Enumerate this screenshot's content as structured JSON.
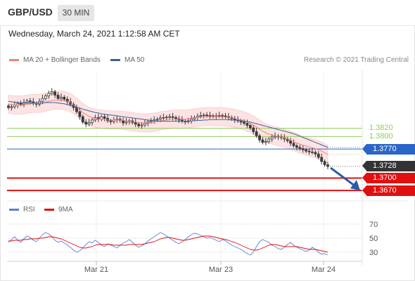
{
  "header": {
    "symbol": "GBP/USD",
    "period": "30 MIN"
  },
  "timestamp": "Wednesday, March 24, 2021 1:12:58 AM CET",
  "legend": {
    "ma20_bb": "MA 20 + Bollinger Bands",
    "ma50": "MA 50",
    "rsi": "RSI",
    "rsi_ma": "9MA"
  },
  "credit": "Research © 2021 Trading Central",
  "colors": {
    "ma20": "#f08080",
    "bands_fill": "#fde3e3",
    "ma50": "#3a5f9e",
    "resistance": "#8fcc5a",
    "pivot": "#2a66c8",
    "support": "#e01010",
    "last": "#333333",
    "rsi": "#5b7fd6",
    "rsi_ma": "#e01010",
    "candle": "#3a3a3a"
  },
  "chart_data": [
    {
      "type": "candlestick",
      "x_ticks": [
        "Mar 21",
        "Mar 23",
        "Mar 24"
      ],
      "ylim": [
        1.3655,
        1.396
      ],
      "price_levels": [
        {
          "label": "1.3820",
          "value": 1.382,
          "kind": "resistance"
        },
        {
          "label": "1.3800",
          "value": 1.38,
          "kind": "resistance"
        },
        {
          "label": "1.3770",
          "value": 1.377,
          "kind": "pivot"
        },
        {
          "label": "1.3728",
          "value": 1.3728,
          "kind": "last"
        },
        {
          "label": "1.3700",
          "value": 1.37,
          "kind": "support"
        },
        {
          "label": "1.3670",
          "value": 1.367,
          "kind": "support"
        }
      ],
      "close": [
        1.387,
        1.3872,
        1.3876,
        1.388,
        1.3878,
        1.3882,
        1.3886,
        1.3884,
        1.388,
        1.3878,
        1.3885,
        1.3892,
        1.3898,
        1.3904,
        1.3908,
        1.39,
        1.3892,
        1.3895,
        1.389,
        1.3884,
        1.3878,
        1.387,
        1.386,
        1.3848,
        1.3835,
        1.383,
        1.3834,
        1.384,
        1.3846,
        1.3842,
        1.3848,
        1.3844,
        1.3838,
        1.3836,
        1.384,
        1.3842,
        1.3839,
        1.3833,
        1.3836,
        1.3838,
        1.3834,
        1.383,
        1.3826,
        1.3828,
        1.3832,
        1.3836,
        1.3838,
        1.384,
        1.3842,
        1.3845,
        1.3846,
        1.3847,
        1.3848,
        1.3846,
        1.3843,
        1.384,
        1.3837,
        1.3836,
        1.3838,
        1.3842,
        1.3846,
        1.3849,
        1.3851,
        1.3852,
        1.3851,
        1.385,
        1.3849,
        1.385,
        1.3851,
        1.385,
        1.3848,
        1.3846,
        1.3843,
        1.384,
        1.3838,
        1.3835,
        1.3832,
        1.3827,
        1.3821,
        1.3812,
        1.3802,
        1.3792,
        1.3786,
        1.3788,
        1.3794,
        1.3799,
        1.3801,
        1.3799,
        1.3797,
        1.3794,
        1.379,
        1.3784,
        1.3778,
        1.3774,
        1.3771,
        1.3768,
        1.3765,
        1.3763,
        1.3762,
        1.3758,
        1.375,
        1.374,
        1.3732,
        1.3728
      ],
      "ma20": [
        1.3878,
        1.3877,
        1.3876,
        1.3876,
        1.3876,
        1.3877,
        1.3878,
        1.3879,
        1.388,
        1.388,
        1.388,
        1.3881,
        1.3883,
        1.3885,
        1.3887,
        1.3888,
        1.3888,
        1.3888,
        1.3887,
        1.3885,
        1.3882,
        1.3877,
        1.3871,
        1.3864,
        1.3858,
        1.3853,
        1.3849,
        1.3846,
        1.3844,
        1.3843,
        1.3842,
        1.3841,
        1.384,
        1.384,
        1.384,
        1.384,
        1.384,
        1.3839,
        1.3838,
        1.3837,
        1.3836,
        1.3835,
        1.3834,
        1.3833,
        1.3833,
        1.3833,
        1.3834,
        1.3835,
        1.3836,
        1.3838,
        1.3839,
        1.384,
        1.3841,
        1.3842,
        1.3842,
        1.3842,
        1.3842,
        1.3842,
        1.3843,
        1.3844,
        1.3845,
        1.3846,
        1.3847,
        1.3848,
        1.3848,
        1.3848,
        1.3848,
        1.3848,
        1.3848,
        1.3848,
        1.3847,
        1.3846,
        1.3845,
        1.3844,
        1.3842,
        1.384,
        1.3838,
        1.3835,
        1.3832,
        1.3828,
        1.3823,
        1.3818,
        1.3813,
        1.3809,
        1.3806,
        1.3804,
        1.3802,
        1.38,
        1.3798,
        1.3796,
        1.3794,
        1.3791,
        1.3788,
        1.3785,
        1.3782,
        1.3779,
        1.3777,
        1.3775,
        1.3773,
        1.3771,
        1.3768,
        1.3765,
        1.3761,
        1.3757
      ],
      "ma50": [
        1.3885,
        1.3884,
        1.3883,
        1.3882,
        1.3881,
        1.3881,
        1.3881,
        1.3881,
        1.3881,
        1.3881,
        1.3881,
        1.3881,
        1.3882,
        1.3882,
        1.3882,
        1.3882,
        1.3881,
        1.388,
        1.3879,
        1.3877,
        1.3875,
        1.3873,
        1.3871,
        1.3869,
        1.3866,
        1.3864,
        1.3862,
        1.386,
        1.3858,
        1.3857,
        1.3855,
        1.3854,
        1.3853,
        1.3852,
        1.3851,
        1.385,
        1.3849,
        1.3848,
        1.3847,
        1.3846,
        1.3845,
        1.3844,
        1.3843,
        1.3842,
        1.3841,
        1.384,
        1.3839,
        1.3838,
        1.3838,
        1.3837,
        1.3837,
        1.3837,
        1.3837,
        1.3837,
        1.3837,
        1.3837,
        1.3837,
        1.3837,
        1.3837,
        1.3838,
        1.3838,
        1.3839,
        1.3839,
        1.384,
        1.384,
        1.3841,
        1.3841,
        1.3841,
        1.3841,
        1.3841,
        1.3841,
        1.3841,
        1.384,
        1.384,
        1.3839,
        1.3838,
        1.3837,
        1.3836,
        1.3835,
        1.3833,
        1.3831,
        1.3829,
        1.3827,
        1.3825,
        1.3823,
        1.3821,
        1.3819,
        1.3817,
        1.3815,
        1.3813,
        1.3811,
        1.3809,
        1.3807,
        1.3804,
        1.3801,
        1.3798,
        1.3795,
        1.3792,
        1.3789,
        1.3786,
        1.3783,
        1.378,
        1.3777,
        1.3774
      ],
      "band_width": 0.0022
    },
    {
      "type": "line",
      "name_series": [
        "RSI",
        "9MA"
      ],
      "ylim": [
        20,
        80
      ],
      "y_ticks": [
        {
          "label": "70",
          "value": 70
        },
        {
          "label": "50",
          "value": 50
        },
        {
          "label": "30",
          "value": 30
        }
      ],
      "rsi": [
        44,
        48,
        52,
        47,
        44,
        49,
        53,
        51,
        47,
        45,
        50,
        55,
        58,
        56,
        52,
        47,
        44,
        46,
        43,
        40,
        37,
        33,
        30,
        32,
        36,
        41,
        45,
        43,
        47,
        44,
        40,
        38,
        42,
        40,
        38,
        36,
        40,
        43,
        45,
        48,
        44,
        40,
        37,
        39,
        42,
        46,
        49,
        52,
        55,
        58,
        56,
        53,
        50,
        47,
        44,
        42,
        45,
        48,
        52,
        55,
        57,
        56,
        54,
        52,
        50,
        51,
        49,
        47,
        45,
        48,
        46,
        43,
        40,
        38,
        36,
        34,
        31,
        28,
        26,
        30,
        38,
        45,
        48,
        46,
        44,
        40,
        38,
        35,
        34,
        37,
        41,
        44,
        40,
        37,
        35,
        33,
        31,
        33,
        37,
        34,
        30,
        27,
        28,
        26
      ],
      "rsi_ma": [
        46,
        46,
        47,
        47,
        47,
        48,
        48,
        49,
        49,
        49,
        50,
        50,
        51,
        52,
        52,
        51,
        50,
        49,
        47,
        45,
        43,
        41,
        39,
        37,
        36,
        36,
        37,
        38,
        40,
        41,
        41,
        41,
        41,
        41,
        40,
        40,
        40,
        40,
        40,
        41,
        41,
        41,
        41,
        41,
        42,
        43,
        44,
        45,
        47,
        49,
        50,
        51,
        51,
        50,
        49,
        48,
        47,
        47,
        48,
        49,
        50,
        51,
        52,
        53,
        53,
        53,
        52,
        51,
        50,
        49,
        48,
        47,
        45,
        44,
        42,
        40,
        38,
        36,
        34,
        33,
        33,
        34,
        36,
        38,
        40,
        41,
        41,
        40,
        39,
        38,
        38,
        38,
        38,
        38,
        37,
        36,
        35,
        34,
        34,
        34,
        33,
        32,
        31,
        30
      ]
    }
  ]
}
